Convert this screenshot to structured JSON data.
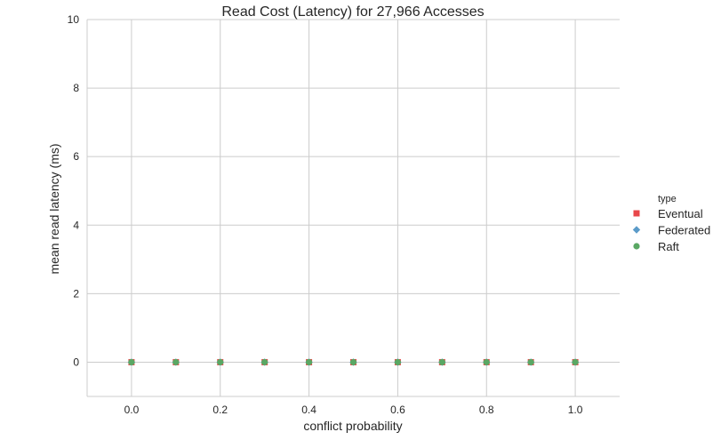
{
  "chart_data": {
    "type": "scatter",
    "title": "Read Cost (Latency) for 27,966 Accesses",
    "xlabel": "conflict probability",
    "ylabel": "mean read latency (ms)",
    "xlim": [
      -0.1,
      1.1
    ],
    "ylim": [
      -1,
      10
    ],
    "xticks": [
      0.0,
      0.2,
      0.4,
      0.6,
      0.8,
      1.0
    ],
    "xtick_labels": [
      "0.0",
      "0.2",
      "0.4",
      "0.6",
      "0.8",
      "1.0"
    ],
    "yticks": [
      0,
      2,
      4,
      6,
      8,
      10
    ],
    "ytick_labels": [
      "0",
      "2",
      "4",
      "6",
      "8",
      "10"
    ],
    "grid": true,
    "legend": {
      "title": "type",
      "placement": "right"
    },
    "x": [
      0.0,
      0.1,
      0.2,
      0.3,
      0.4,
      0.5,
      0.6,
      0.7,
      0.8,
      0.9,
      1.0
    ],
    "series": [
      {
        "name": "Eventual",
        "marker": "square",
        "color": "#e8474a",
        "values": [
          0,
          0,
          0,
          0,
          0,
          0,
          0,
          0,
          0,
          0,
          0
        ]
      },
      {
        "name": "Federated",
        "marker": "diamond",
        "color": "#5b9bc9",
        "values": [
          0,
          0,
          0,
          0,
          0,
          0,
          0,
          0,
          0,
          0,
          0
        ]
      },
      {
        "name": "Raft",
        "marker": "circle",
        "color": "#5aa864",
        "values": [
          0,
          0,
          0,
          0,
          0,
          0,
          0,
          0,
          0,
          0,
          0
        ]
      }
    ]
  }
}
